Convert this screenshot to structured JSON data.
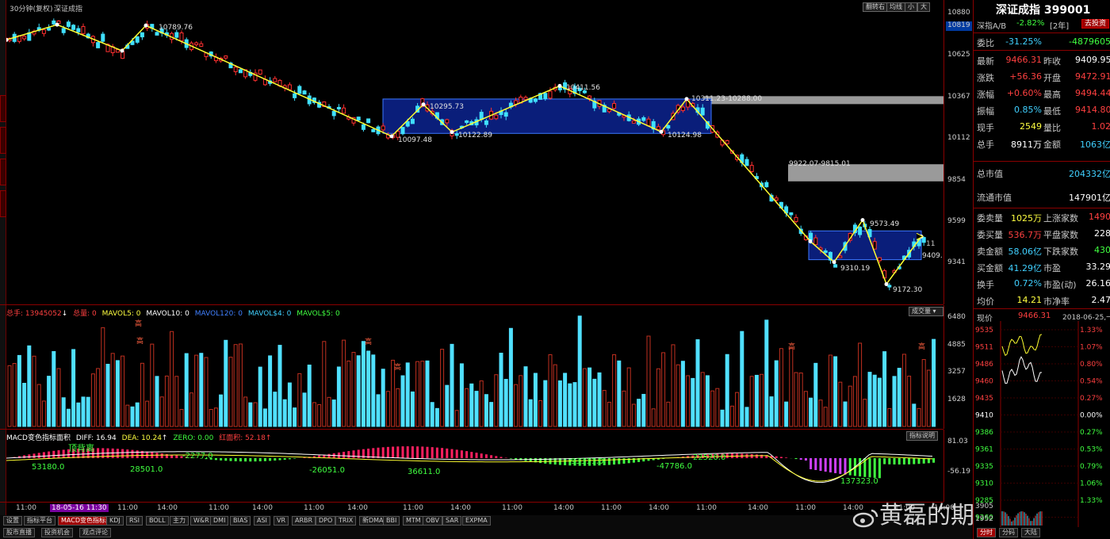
{
  "title_bar": {
    "period": "30分钟(复权)",
    "name": "深证成指",
    "buttons": [
      "翻转右",
      "均线",
      "小",
      "大"
    ]
  },
  "axis": {
    "price_labels": [
      "10880",
      "10819",
      "10625",
      "10367",
      "10112",
      "9854",
      "9599",
      "9341"
    ],
    "vol_labels": [
      "6480",
      "4885",
      "3257",
      "1628"
    ],
    "macd_labels": [
      "81.03",
      "-56.19"
    ]
  },
  "time_axis": {
    "labels": [
      "11:00",
      "18-05-16 11:30",
      "11:00",
      "14:00",
      "11:00",
      "14:00",
      "11:00",
      "14:00",
      "11:00",
      "14:00",
      "11:00",
      "14:00",
      "11:00",
      "14:00",
      "11:00",
      "14:00",
      "11:00",
      "14:00",
      "11:00",
      "14:00"
    ]
  },
  "price_annotations": {
    "hi1": "10789.76",
    "hi2": "10295.73",
    "hi3": "10411.56",
    "lo1": "10097.48",
    "lo2": "10122.89",
    "lo3": "10124.98",
    "gap1": "10311.23-10288.00",
    "gap2": "9922.07-9815.01",
    "hi4": "9573.49",
    "lo4": "9310.19",
    "lo5": "9172.30",
    "now_label": "9409.",
    "tick_right": "11"
  },
  "volume_header": {
    "total_label": "总手: ",
    "total_value": "13945052",
    "arrow": "↓",
    "zl_label": "总量: ",
    "zl_value": "0",
    "mavol5": "MAVOL5: 0",
    "mavol10": "MAVOL10: 0",
    "mavol120": "MAVOL120: 0",
    "mavol54": "MAVOL$4: 0",
    "mavol55": "MAVOL$5: 0",
    "dropdown": "成交量",
    "marks": [
      "高",
      "高",
      "高",
      "高",
      "高",
      "高"
    ]
  },
  "macd_header": {
    "name": "MACD变色指标面积",
    "diff": "DIFF: 16.94",
    "diff_arrow": "↑",
    "dea": "DEA: 10.24",
    "dea_arrow": "↑",
    "zero": "ZERO: 0.00",
    "area": "红面积: 52.18",
    "area_arrow": "↑",
    "help": "指标说明",
    "divergence": "顶背离",
    "area_values": [
      "53180.0",
      "28501.0",
      "-2277.0",
      "-26051.0",
      "36611.0",
      "93311.0",
      "-47786.0",
      "22520.0",
      "137323.0"
    ]
  },
  "tabs": [
    "设置",
    "指标平台",
    "MACD变色指标面积",
    "KDJ",
    "RSI",
    "BOLL",
    "主力",
    "W&R",
    "DMI",
    "BIAS",
    "ASI",
    "VR",
    "ARBR",
    "DPO",
    "TRIX",
    "新DMA",
    "BBI",
    "MTM",
    "OBV",
    "SAR",
    "EXPMA"
  ],
  "bottom_buttons": [
    "股市直播",
    "投资机会",
    "观点评论"
  ],
  "watermark": "黄磊的期货人生",
  "quote": {
    "title": "深证成指 399001",
    "sub_name": "深指A/B",
    "sub_change": "-2.82%",
    "sub_tag": "[2年]",
    "sub_button": "去投资",
    "weibi_label": "委比",
    "weibi_value": "-31.25%",
    "weicha_value": "-4879605",
    "rows": [
      {
        "l1": "最新",
        "v1": "9466.31",
        "l2": "昨收",
        "v2": "9409.95",
        "c1": "#ff4040",
        "c2": "#ffffff"
      },
      {
        "l1": "涨跌",
        "v1": "+56.36",
        "l2": "开盘",
        "v2": "9472.91",
        "c1": "#ff4040",
        "c2": "#ff4040"
      },
      {
        "l1": "涨幅",
        "v1": "+0.60%",
        "l2": "最高",
        "v2": "9494.44",
        "c1": "#ff4040",
        "c2": "#ff4040"
      },
      {
        "l1": "振幅",
        "v1": "0.85%",
        "l2": "最低",
        "v2": "9414.80",
        "c1": "#40d0ff",
        "c2": "#ff4040"
      },
      {
        "l1": "现手",
        "v1": "2549",
        "l2": "量比",
        "v2": "1.02",
        "c1": "#ffff40",
        "c2": "#ff4040"
      },
      {
        "l1": "总手",
        "v1": "8911万",
        "l2": "金额",
        "v2": "1063亿",
        "c1": "#ffffff",
        "c2": "#40d0ff"
      }
    ],
    "market_cap": {
      "total_label": "总市值",
      "total_value": "204332亿",
      "float_label": "流通市值",
      "float_value": "147901亿"
    },
    "book": [
      {
        "l1": "委卖量",
        "v1": "1025万",
        "l2": "上涨家数",
        "v2": "1490",
        "c1": "#ffff40",
        "c2": "#ff4040"
      },
      {
        "l1": "委买量",
        "v1": "536.7万",
        "l2": "平盘家数",
        "v2": "228",
        "c1": "#ff4040",
        "c2": "#ffffff"
      },
      {
        "l1": "卖金额",
        "v1": "58.06亿",
        "l2": "下跌家数",
        "v2": "430",
        "c1": "#40d0ff",
        "c2": "#40ff40"
      },
      {
        "l1": "买金额",
        "v1": "41.29亿",
        "l2": "市盈",
        "v2": "33.29",
        "c1": "#40d0ff",
        "c2": "#ffffff"
      },
      {
        "l1": "换手",
        "v1": "0.72%",
        "l2": "市盈(动)",
        "v2": "26.16",
        "c1": "#40d0ff",
        "c2": "#ffffff"
      },
      {
        "l1": "均价",
        "v1": "14.21",
        "l2": "市净率",
        "v2": "2.47",
        "c1": "#ffff40",
        "c2": "#ffffff"
      }
    ]
  },
  "mini_chart": {
    "now_label": "现价",
    "now_value": "9466.31",
    "date": "2018-06-25,一",
    "price_labels": [
      "9535",
      "9511",
      "9486",
      "9460",
      "9435",
      "9410",
      "9386",
      "9361",
      "9335",
      "9310",
      "9285",
      "9260",
      "3905",
      "1952"
    ],
    "pct_labels": [
      "1.33%",
      "1.07%",
      "0.80%",
      "0.54%",
      "0.27%",
      "0.00%",
      "0.27%",
      "0.53%",
      "0.79%",
      "1.06%",
      "1.33%"
    ],
    "tabs": [
      "分时",
      "分码",
      "大陆"
    ]
  }
}
